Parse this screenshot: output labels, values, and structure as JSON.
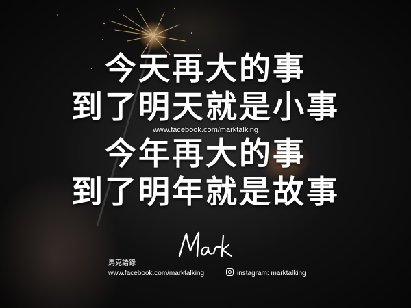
{
  "quote": {
    "lines": [
      "今天再大的事",
      "到了明天就是小事",
      "今年再大的事",
      "到了明年就是故事"
    ],
    "mid_url": "www.facebook.com/marktalking"
  },
  "footer": {
    "signature": "Mark",
    "brand_name": "馬克語錄",
    "facebook_url": "www.facebook.com/marktalking",
    "instagram_label": "instagram: marktalking"
  },
  "colors": {
    "text": "#ffffff",
    "spark": "#ffcf8a"
  },
  "icons": {
    "instagram": "instagram-icon"
  }
}
